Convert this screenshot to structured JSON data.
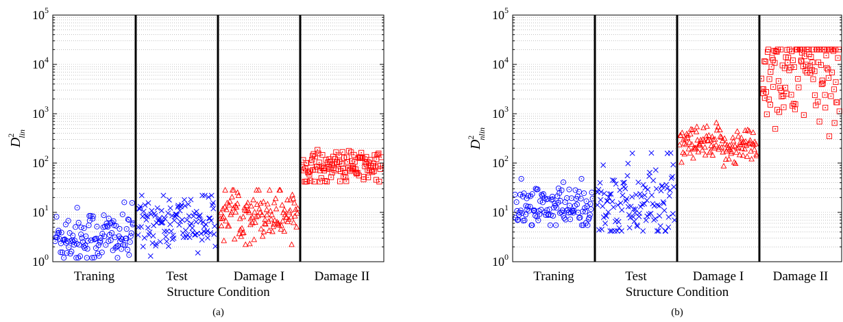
{
  "chart_data": [
    {
      "type": "scatter",
      "caption": "(a)",
      "xlabel": "Structure Condition",
      "ylabel_base": "D",
      "ylabel_sup": "2",
      "ylabel_sub": "lin",
      "yscale": "log",
      "ylim": [
        1,
        100000
      ],
      "yticks": [
        {
          "base": "10",
          "exp": "0"
        },
        {
          "base": "10",
          "exp": "1"
        },
        {
          "base": "10",
          "exp": "2"
        },
        {
          "base": "10",
          "exp": "3"
        },
        {
          "base": "10",
          "exp": "4"
        },
        {
          "base": "10",
          "exp": "5"
        }
      ],
      "grid": true,
      "categories": [
        "Traning",
        "Test",
        "Damage I",
        "Damage II"
      ],
      "series": [
        {
          "label": "Traning",
          "marker": "circle",
          "color": "#0000ff",
          "points": 120,
          "median": 3.2,
          "min": 1.2,
          "max": 16
        },
        {
          "label": "Test",
          "marker": "x",
          "color": "#0000ff",
          "points": 120,
          "median": 6.5,
          "min": 1.3,
          "max": 22
        },
        {
          "label": "Damage I",
          "marker": "triangle",
          "color": "#ff0000",
          "points": 120,
          "median": 10,
          "min": 2.2,
          "max": 28
        },
        {
          "label": "Damage II",
          "marker": "square",
          "color": "#ff0000",
          "points": 120,
          "median": 85,
          "min": 42,
          "max": 210
        }
      ]
    },
    {
      "type": "scatter",
      "caption": "(b)",
      "xlabel": "Structure Condition",
      "ylabel_base": "D",
      "ylabel_sup": "2",
      "ylabel_sub": "nlin",
      "yscale": "log",
      "ylim": [
        1,
        100000
      ],
      "yticks": [
        {
          "base": "10",
          "exp": "0"
        },
        {
          "base": "10",
          "exp": "1"
        },
        {
          "base": "10",
          "exp": "2"
        },
        {
          "base": "10",
          "exp": "3"
        },
        {
          "base": "10",
          "exp": "4"
        },
        {
          "base": "10",
          "exp": "5"
        }
      ],
      "grid": true,
      "categories": [
        "Traning",
        "Test",
        "Damage I",
        "Damage II"
      ],
      "series": [
        {
          "label": "Traning",
          "marker": "circle",
          "color": "#0000ff",
          "points": 120,
          "median": 12,
          "min": 5.5,
          "max": 48
        },
        {
          "label": "Test",
          "marker": "x",
          "color": "#0000ff",
          "points": 120,
          "median": 15,
          "min": 4.2,
          "max": 160
        },
        {
          "label": "Damage I",
          "marker": "triangle",
          "color": "#ff0000",
          "points": 120,
          "median": 220,
          "min": 85,
          "max": 650
        },
        {
          "label": "Damage II",
          "marker": "square",
          "color": "#ff0000",
          "points": 120,
          "median": 7000,
          "min": 350,
          "max": 20000
        }
      ]
    }
  ]
}
